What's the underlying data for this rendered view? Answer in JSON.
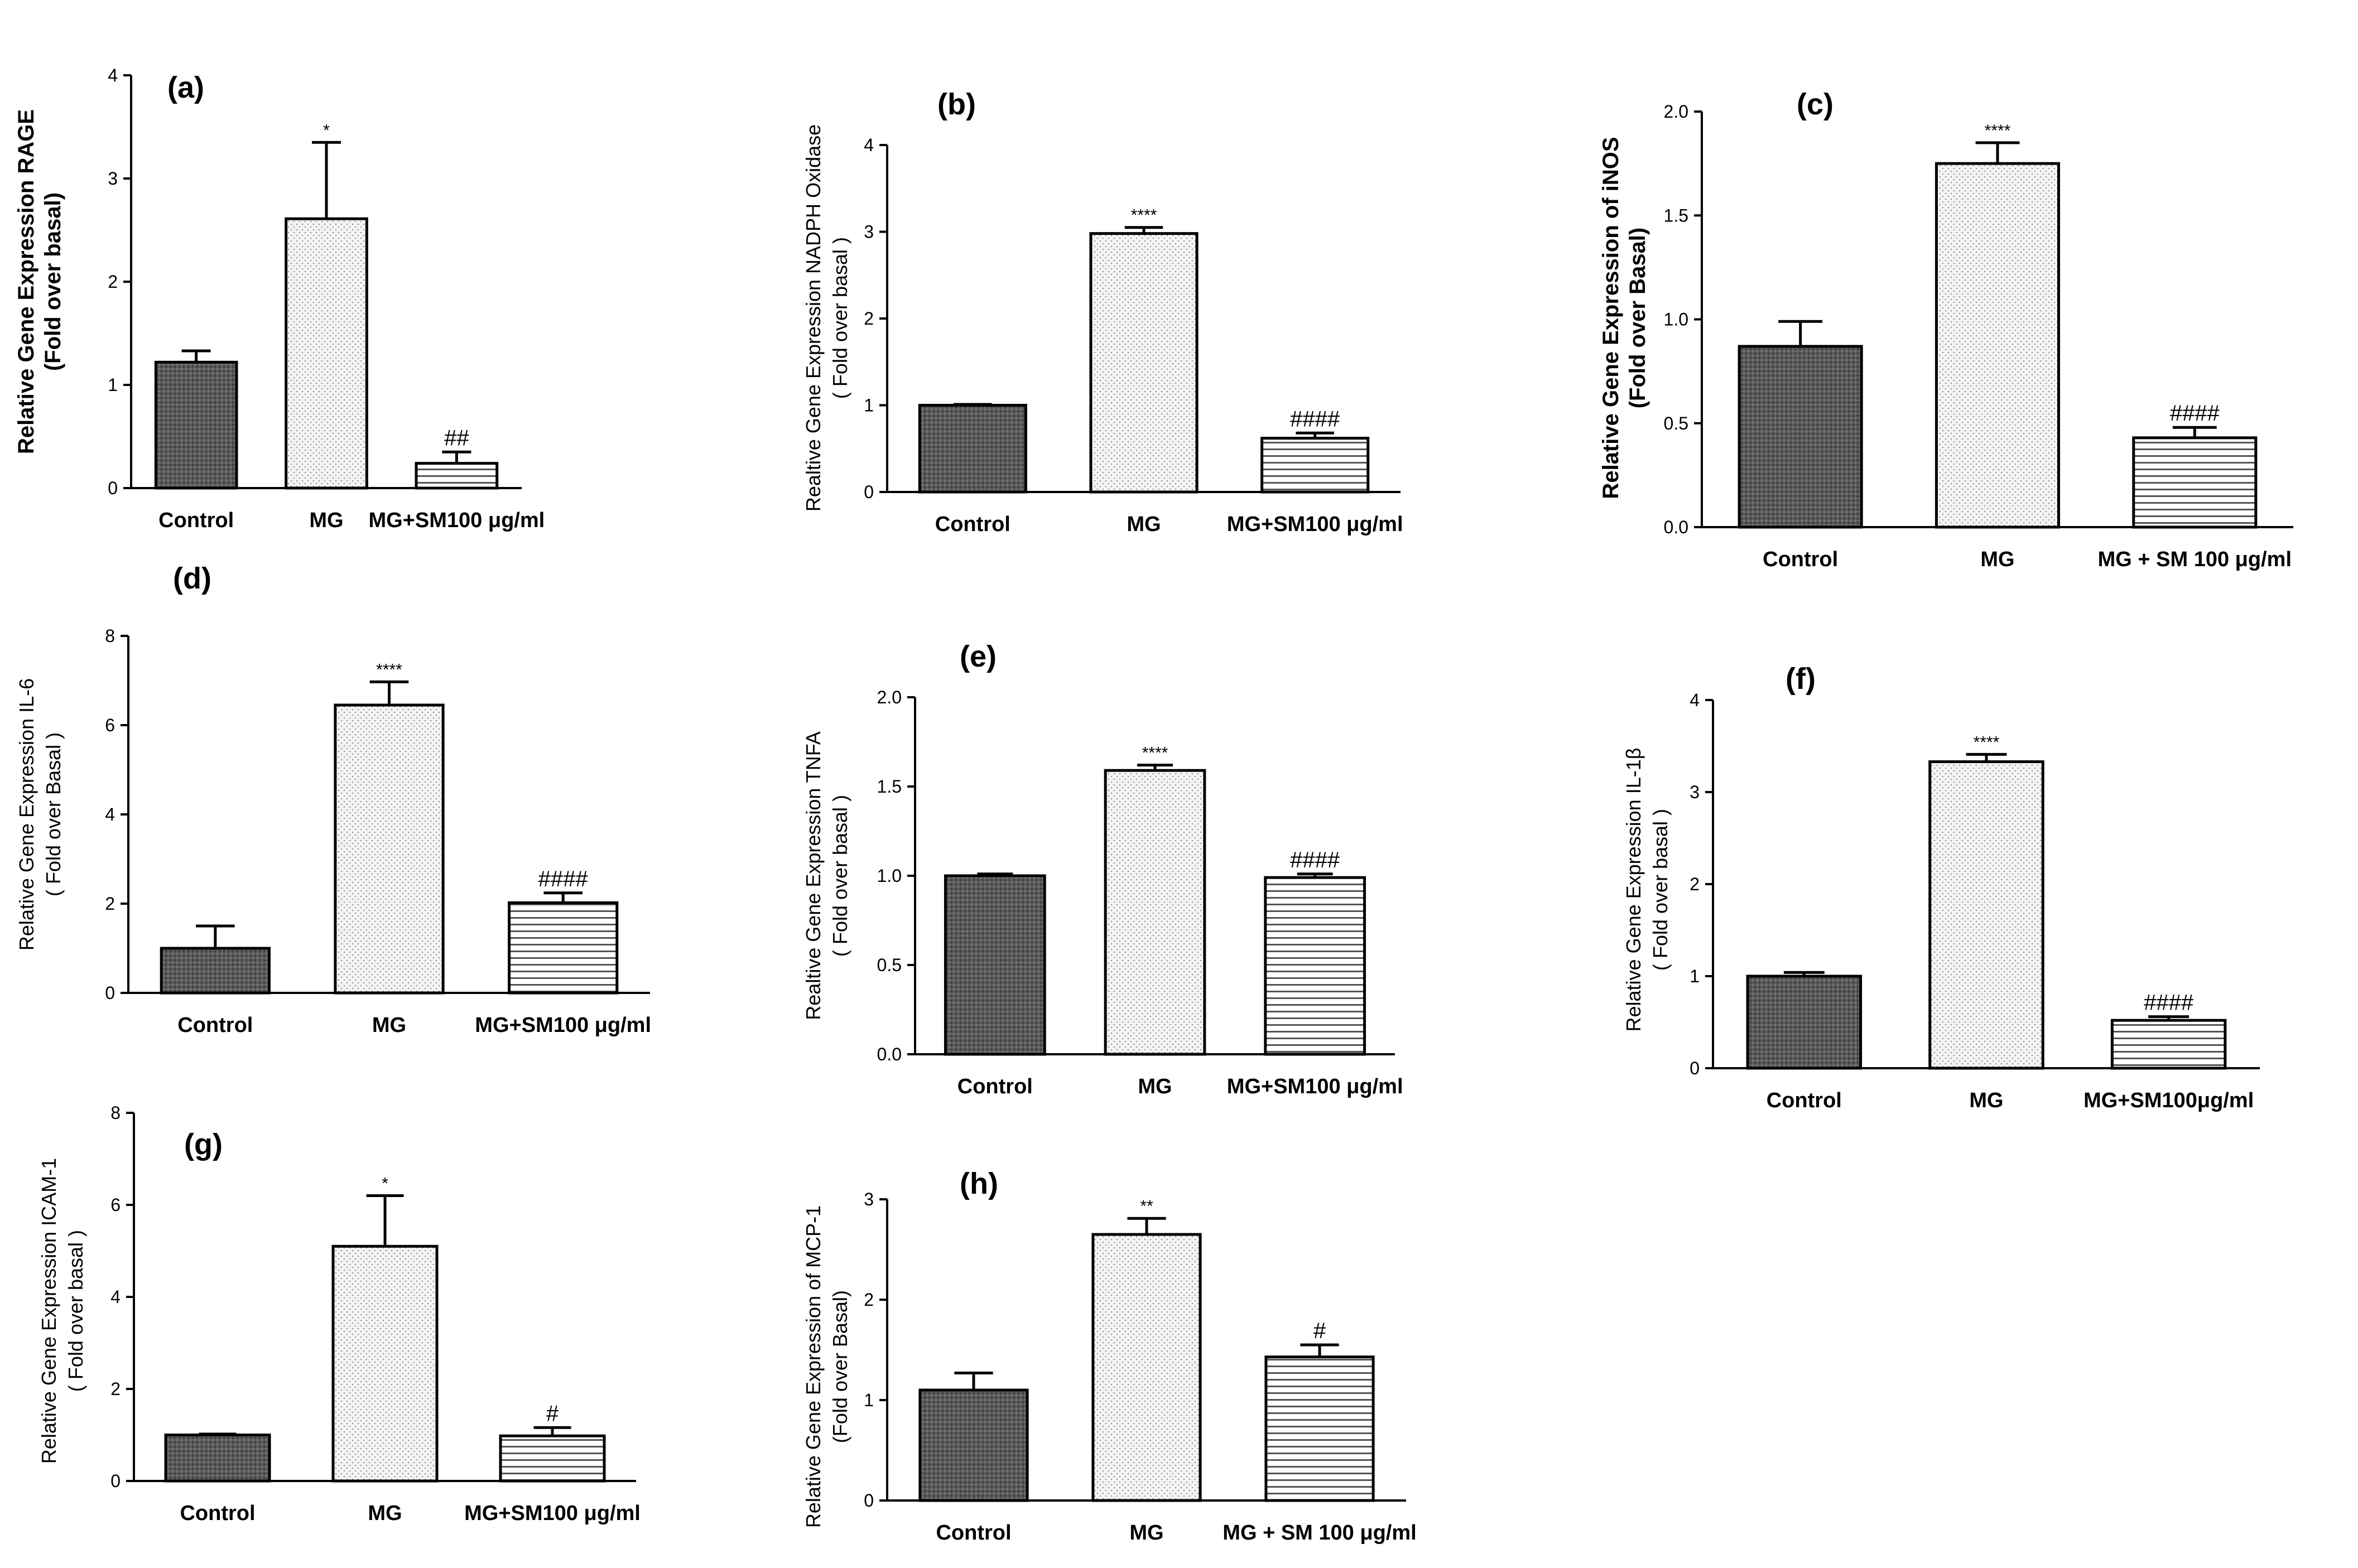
{
  "chart_data": [
    {
      "type": "bar",
      "panel": "(a)",
      "ylabel": [
        "Relative Gene Expression RAGE",
        "(Fold over basal)"
      ],
      "ylim": [
        0,
        4
      ],
      "yticks": [
        "0",
        "1",
        "2",
        "3",
        "4"
      ],
      "categories": [
        "Control",
        "MG",
        "MG+SM100 μg/ml"
      ],
      "values": [
        1.22,
        2.61,
        0.24
      ],
      "errors": [
        0.11,
        0.74,
        0.11
      ],
      "annotations": [
        "",
        "*",
        "##"
      ],
      "bold_axis": true
    },
    {
      "type": "bar",
      "panel": "(b)",
      "ylabel": [
        "Realtive Gene Expression NADPH Oxidase",
        "( Fold over basal )"
      ],
      "ylim": [
        0,
        4
      ],
      "yticks": [
        "0",
        "1",
        "2",
        "3",
        "4"
      ],
      "categories": [
        "Control",
        "MG",
        "MG+SM100 μg/ml"
      ],
      "values": [
        1.0,
        2.98,
        0.62
      ],
      "errors": [
        0.01,
        0.07,
        0.06
      ],
      "annotations": [
        "",
        "****",
        "####"
      ],
      "bold_axis": false
    },
    {
      "type": "bar",
      "panel": "(c)",
      "ylabel": [
        "Relative Gene Expression of iNOS",
        "(Fold over Basal)"
      ],
      "ylim": [
        0,
        2.0
      ],
      "yticks": [
        "0.0",
        "0.5",
        "1.0",
        "1.5",
        "2.0"
      ],
      "categories": [
        "Control",
        "MG",
        "MG + SM 100 μg/ml"
      ],
      "values": [
        0.87,
        1.75,
        0.43
      ],
      "errors": [
        0.12,
        0.1,
        0.05
      ],
      "annotations": [
        "",
        "****",
        "####"
      ],
      "bold_axis": true
    },
    {
      "type": "bar",
      "panel": "(d)",
      "ylabel": [
        "Relative Gene Expression IL-6",
        "( Fold over Basal )"
      ],
      "ylim": [
        0,
        8
      ],
      "yticks": [
        "0",
        "2",
        "4",
        "6",
        "8"
      ],
      "categories": [
        "Control",
        "MG",
        "MG+SM100 μg/ml"
      ],
      "values": [
        1.0,
        6.45,
        2.02
      ],
      "errors": [
        0.5,
        0.52,
        0.22
      ],
      "annotations": [
        "",
        "****",
        "####"
      ],
      "bold_axis": false
    },
    {
      "type": "bar",
      "panel": "(e)",
      "ylabel": [
        "Realtive Gene Expression TNFA",
        "( Fold over basal )"
      ],
      "ylim": [
        0,
        2.0
      ],
      "yticks": [
        "0.0",
        "0.5",
        "1.0",
        "1.5",
        "2.0"
      ],
      "categories": [
        "Control",
        "MG",
        "MG+SM100 μg/ml"
      ],
      "values": [
        1.0,
        1.59,
        0.99
      ],
      "errors": [
        0.01,
        0.03,
        0.02
      ],
      "annotations": [
        "",
        "****",
        "####"
      ],
      "bold_axis": false
    },
    {
      "type": "bar",
      "panel": "(f)",
      "ylabel": [
        "Relative Gene Expression IL-1β",
        "( Fold over basal )"
      ],
      "ylim": [
        0,
        4
      ],
      "yticks": [
        "0",
        "1",
        "2",
        "3",
        "4"
      ],
      "categories": [
        "Control",
        "MG",
        "MG+SM100μg/ml"
      ],
      "values": [
        1.0,
        3.33,
        0.52
      ],
      "errors": [
        0.04,
        0.08,
        0.04
      ],
      "annotations": [
        "",
        "****",
        "####"
      ],
      "bold_axis": false
    },
    {
      "type": "bar",
      "panel": "(g)",
      "ylabel": [
        "Relative Gene Expression ICAM-1",
        "( Fold over basal )"
      ],
      "ylim": [
        0,
        8
      ],
      "yticks": [
        "0",
        "2",
        "4",
        "6",
        "8"
      ],
      "categories": [
        "Control",
        "MG",
        "MG+SM100 μg/ml"
      ],
      "values": [
        1.0,
        5.1,
        0.98
      ],
      "errors": [
        0.02,
        1.1,
        0.18
      ],
      "annotations": [
        "",
        "*",
        "#"
      ],
      "bold_axis": false
    },
    {
      "type": "bar",
      "panel": "(h)",
      "ylabel": [
        "Relative Gene Expression of MCP-1",
        "(Fold over Basal)"
      ],
      "ylim": [
        0,
        3
      ],
      "yticks": [
        "0",
        "1",
        "2",
        "3"
      ],
      "categories": [
        "Control",
        "MG",
        "MG + SM 100 μg/ml"
      ],
      "values": [
        1.1,
        2.65,
        1.43
      ],
      "errors": [
        0.17,
        0.16,
        0.12
      ],
      "annotations": [
        "",
        "**",
        "#"
      ],
      "bold_axis": false
    }
  ]
}
